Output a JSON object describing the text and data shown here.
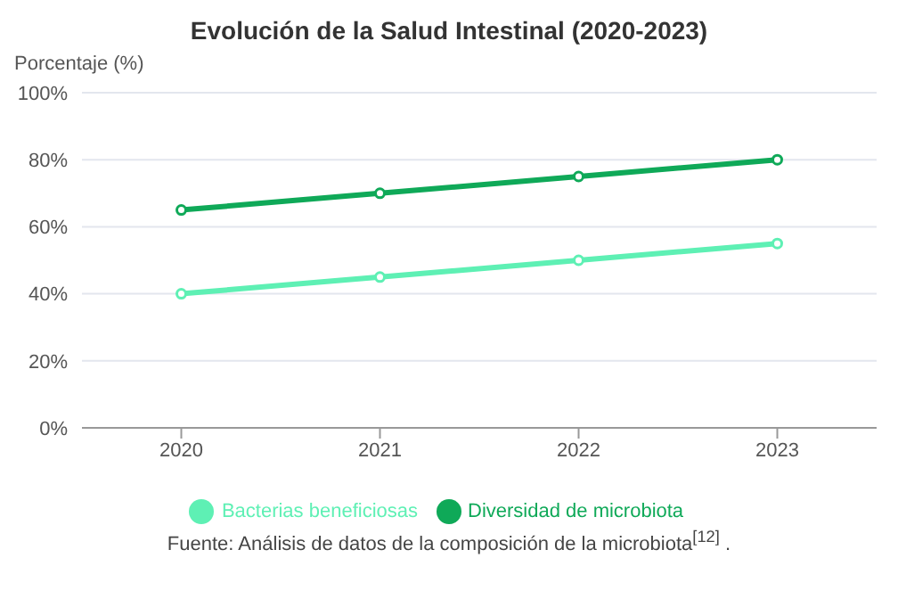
{
  "chart_data": {
    "type": "line",
    "title": "Evolución de la Salud Intestinal (2020-2023)",
    "ylabel": "Porcentaje (%)",
    "categories": [
      "2020",
      "2021",
      "2022",
      "2023"
    ],
    "series": [
      {
        "name": "Diversidad de microbiota",
        "color": "#0fa958",
        "values": [
          65,
          70,
          75,
          80
        ]
      },
      {
        "name": "Bacterias beneficiosas",
        "color": "#5ef0b4",
        "values": [
          40,
          45,
          50,
          55
        ]
      }
    ],
    "ylim": [
      0,
      100
    ],
    "yticks": [
      {
        "value": 0,
        "label": "0%"
      },
      {
        "value": 20,
        "label": "20%"
      },
      {
        "value": 40,
        "label": "40%"
      },
      {
        "value": 60,
        "label": "60%"
      },
      {
        "value": 80,
        "label": "80%"
      },
      {
        "value": 100,
        "label": "100%"
      }
    ],
    "grid": "y",
    "legend": "bottom",
    "marker": "circle",
    "line_style": "solid",
    "annotations": [
      "Fuente: Análisis de datos de la composición de la microbiota$^{[12]}$ ."
    ]
  }
}
